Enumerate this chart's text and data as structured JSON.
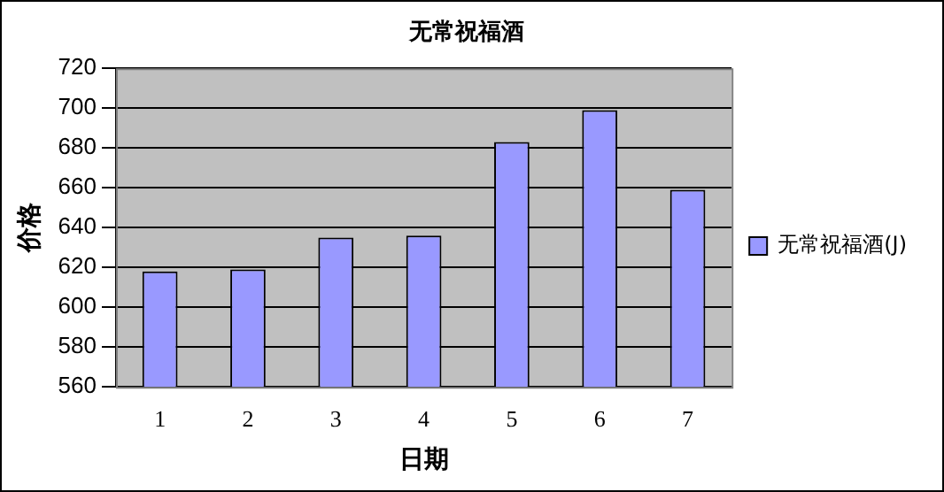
{
  "chart_data": {
    "type": "bar",
    "title": "无常祝福酒",
    "xlabel": "日期",
    "ylabel": "价格",
    "categories": [
      "1",
      "2",
      "3",
      "4",
      "5",
      "6",
      "7"
    ],
    "series": [
      {
        "name": "无常祝福酒(J)",
        "color": "#9999ff",
        "values": [
          618,
          619,
          635,
          636,
          683,
          699,
          659
        ]
      }
    ],
    "ylim": [
      560,
      720
    ],
    "yticks": [
      560,
      580,
      600,
      620,
      640,
      660,
      680,
      700,
      720
    ],
    "grid": "y",
    "legend": "right"
  }
}
